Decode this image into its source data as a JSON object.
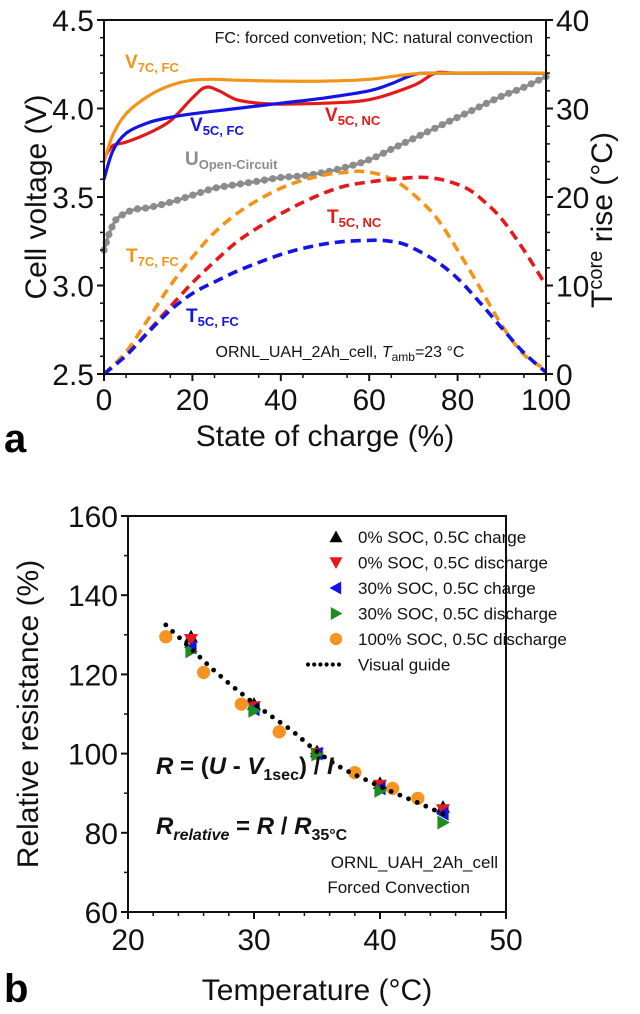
{
  "chart_data": [
    {
      "panel": "a",
      "type": "line",
      "xlabel": "State of charge (%)",
      "ylabel": "Cell voltage (V)",
      "y2label": "T_core rise (°C)",
      "y2label_main": "T",
      "y2label_sub": "core",
      "y2label_rest": " rise (°C)",
      "xlim": [
        0,
        100
      ],
      "ylim": [
        2.5,
        4.5
      ],
      "y2lim": [
        0,
        40
      ],
      "xticks": [
        "0",
        "20",
        "40",
        "60",
        "80",
        "100"
      ],
      "yticks": [
        "2.5",
        "3.0",
        "3.5",
        "4.0",
        "4.5"
      ],
      "y2ticks": [
        "0",
        "10",
        "20",
        "30",
        "40"
      ],
      "grid": false,
      "annotation_top": "FC: forced convetion; NC: natural convection",
      "annotation_bottom_pre": "ORNL_UAH_2Ah_cell, ",
      "annotation_bottom_T": "T",
      "annotation_bottom_sub": "amb",
      "annotation_bottom_post": "=23 °C",
      "series": [
        {
          "name": "V7C, FC",
          "label_main": "V",
          "label_sub": "7C, FC",
          "axis": "left",
          "style": "solid",
          "color": "#f39419",
          "x": [
            0,
            2,
            5,
            10,
            15,
            20,
            25,
            30,
            40,
            50,
            60,
            68,
            75,
            100
          ],
          "y": [
            3.7,
            3.85,
            3.97,
            4.07,
            4.13,
            4.16,
            4.165,
            4.16,
            4.155,
            4.155,
            4.165,
            4.19,
            4.2,
            4.2
          ]
        },
        {
          "name": "V5C, FC",
          "label_main": "V",
          "label_sub": "5C, FC",
          "axis": "left",
          "style": "solid",
          "color": "#1414e6",
          "x": [
            0,
            2,
            5,
            10,
            15,
            20,
            30,
            40,
            50,
            60,
            65,
            70,
            75,
            100
          ],
          "y": [
            3.6,
            3.76,
            3.86,
            3.92,
            3.95,
            3.97,
            4.0,
            4.03,
            4.06,
            4.1,
            4.14,
            4.19,
            4.2,
            4.2
          ]
        },
        {
          "name": "V5C, NC",
          "label_main": "V",
          "label_sub": "5C, NC",
          "axis": "left",
          "style": "solid",
          "color": "#e41a1a",
          "x": [
            0,
            2,
            5,
            10,
            15,
            20,
            23,
            26,
            30,
            35,
            40,
            50,
            60,
            70,
            75,
            80,
            100
          ],
          "y": [
            3.72,
            3.79,
            3.81,
            3.86,
            3.93,
            4.06,
            4.12,
            4.1,
            4.05,
            4.03,
            4.025,
            4.03,
            4.05,
            4.13,
            4.2,
            4.2,
            4.2
          ]
        },
        {
          "name": "U Open-Circuit",
          "label_main": "U",
          "label_sub": "Open-Circuit",
          "axis": "left",
          "style": "dotted-markers",
          "color": "#8c8c8c",
          "x": [
            0,
            1,
            2,
            3,
            5,
            7,
            10,
            15,
            20,
            25,
            30,
            35,
            40,
            45,
            50,
            55,
            60,
            65,
            70,
            75,
            80,
            85,
            90,
            95,
            100
          ],
          "y": [
            3.2,
            3.28,
            3.34,
            3.38,
            3.41,
            3.43,
            3.44,
            3.47,
            3.51,
            3.55,
            3.57,
            3.59,
            3.61,
            3.62,
            3.64,
            3.67,
            3.71,
            3.77,
            3.83,
            3.89,
            3.95,
            4.01,
            4.07,
            4.12,
            4.18
          ]
        },
        {
          "name": "T7C, FC",
          "label_main": "T",
          "label_sub": "7C, FC",
          "axis": "right",
          "style": "dashed",
          "color": "#f39419",
          "x": [
            0,
            5,
            10,
            15,
            20,
            25,
            30,
            35,
            40,
            45,
            50,
            55,
            58,
            62,
            66,
            70,
            75,
            80,
            85,
            90,
            95,
            100
          ],
          "y": [
            0,
            2.5,
            6.2,
            10,
            13.2,
            16,
            18.1,
            19.7,
            21,
            21.9,
            22.5,
            22.8,
            22.9,
            22.6,
            21.8,
            20.3,
            17.8,
            14,
            9.8,
            5.5,
            2.2,
            0.5
          ]
        },
        {
          "name": "T5C, NC",
          "label_main": "T",
          "label_sub": "5C, NC",
          "axis": "right",
          "style": "dashed",
          "color": "#e41a1a",
          "x": [
            0,
            5,
            10,
            15,
            20,
            25,
            30,
            35,
            40,
            45,
            50,
            55,
            60,
            65,
            70,
            73,
            77,
            82,
            86,
            90,
            95,
            100
          ],
          "y": [
            0,
            2.1,
            4.8,
            7.6,
            10.3,
            12.7,
            14.9,
            16.6,
            18.1,
            19.4,
            20.5,
            21.3,
            21.7,
            22,
            22.2,
            22.2,
            21.9,
            21,
            19.5,
            17.5,
            14,
            10
          ]
        },
        {
          "name": "T5C, FC",
          "label_main": "T",
          "label_sub": "5C, FC",
          "axis": "right",
          "style": "dashed",
          "color": "#1414e6",
          "x": [
            0,
            5,
            10,
            15,
            20,
            25,
            30,
            35,
            40,
            45,
            50,
            55,
            60,
            63,
            67,
            70,
            75,
            80,
            85,
            90,
            95,
            100
          ],
          "y": [
            0,
            2.1,
            4.7,
            7.2,
            9.1,
            10.4,
            11.6,
            12.6,
            13.5,
            14.2,
            14.7,
            15,
            15.1,
            15.1,
            14.8,
            14.2,
            12.8,
            10.8,
            8.1,
            5.2,
            2.4,
            0.2
          ]
        }
      ]
    },
    {
      "panel": "b",
      "type": "scatter",
      "xlabel": "Temperature (°C)",
      "ylabel": "Relative resistance (%)",
      "xlim": [
        20,
        50
      ],
      "ylim": [
        60,
        160
      ],
      "xticks": [
        "20",
        "30",
        "40",
        "50"
      ],
      "yticks": [
        "60",
        "80",
        "100",
        "120",
        "140",
        "160"
      ],
      "grid": false,
      "legend_placement": "top-right",
      "formula1_R": "R",
      "formula1_mid": " = (",
      "formula1_U": "U",
      "formula1_dash": " - ",
      "formula1_V": "V",
      "formula1_sub": "1sec",
      "formula1_end": ") / ",
      "formula1_I": "I",
      "formula2_R": "R",
      "formula2_sub": "relative",
      "formula2_mid": " = ",
      "formula2_R2": "R",
      "formula2_slash": " / ",
      "formula2_R3": "R",
      "formula2_sub2": "35°C",
      "note_line1": "ORNL_UAH_2Ah_cell",
      "note_line2": "Forced Convection",
      "series": [
        {
          "name": "0% SOC, 0.5C charge",
          "marker": "triangle-up",
          "color": "#000000",
          "x": [
            25,
            30,
            35,
            40,
            45
          ],
          "y": [
            129.5,
            112.5,
            100.5,
            92.5,
            86.5
          ]
        },
        {
          "name": "0% SOC, 0.5C discharge",
          "marker": "triangle-down",
          "color": "#e41a1a",
          "x": [
            25,
            30,
            35,
            40,
            45
          ],
          "y": [
            128.8,
            111.8,
            100,
            92,
            85.8
          ]
        },
        {
          "name": "30% SOC, 0.5C charge",
          "marker": "triangle-left",
          "color": "#1414e6",
          "x": [
            25,
            30,
            35,
            40,
            45
          ],
          "y": [
            126.8,
            111.2,
            100,
            91.2,
            84.8
          ]
        },
        {
          "name": "30% SOC, 0.5C discharge",
          "marker": "triangle-right",
          "color": "#1e8c1e",
          "x": [
            25,
            30,
            35,
            40,
            45
          ],
          "y": [
            125.8,
            110.8,
            99.8,
            90.6,
            82.6
          ]
        },
        {
          "name": "100% SOC, 0.5C discharge",
          "marker": "circle",
          "color": "#f7931e",
          "x": [
            23,
            26,
            29,
            32,
            35,
            38,
            41,
            43
          ],
          "y": [
            129.5,
            120.5,
            112.5,
            105.5,
            100,
            95.2,
            91.2,
            88.7
          ]
        },
        {
          "name": "Visual guide",
          "marker": "dotted-line",
          "color": "#000000",
          "x": [
            23,
            25,
            27,
            29,
            31,
            33,
            35,
            37,
            39,
            41,
            43,
            45
          ],
          "y": [
            132.5,
            126.5,
            120.5,
            115.2,
            110.3,
            105.8,
            100.5,
            96.3,
            93.2,
            90.3,
            87.6,
            84.8
          ]
        }
      ]
    }
  ]
}
